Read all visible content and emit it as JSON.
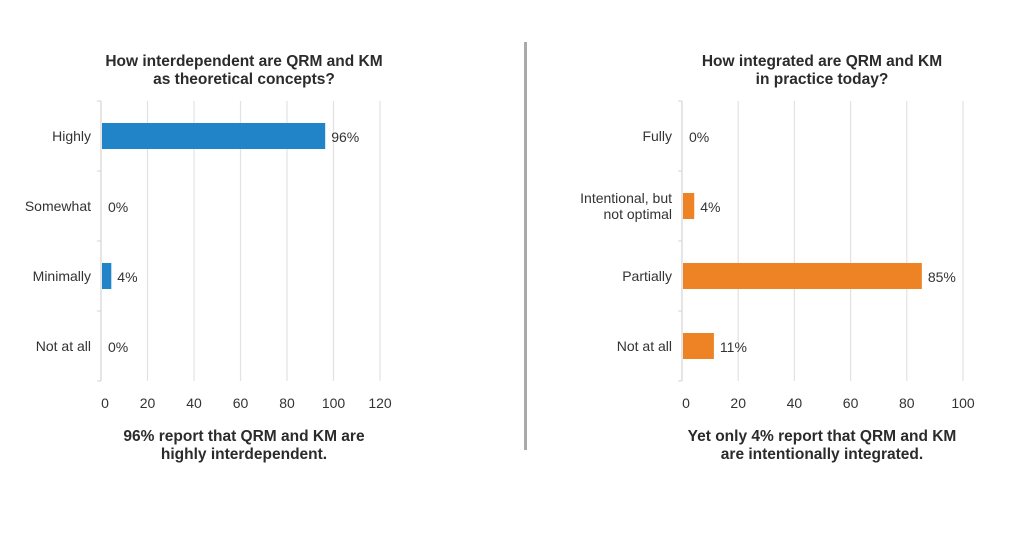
{
  "chart_data": [
    {
      "type": "bar",
      "orientation": "horizontal",
      "title": [
        "How interdependent are QRM and KM",
        "as theoretical concepts?"
      ],
      "categories": [
        "Highly",
        "Somewhat",
        "Minimally",
        "Not at all"
      ],
      "values": [
        96,
        0,
        4,
        0
      ],
      "data_labels": [
        "96%",
        "0%",
        "4%",
        "0%"
      ],
      "xlim": [
        0,
        120
      ],
      "xticks": [
        "0",
        "20",
        "40",
        "60",
        "80",
        "100",
        "120"
      ],
      "grid": true,
      "color": "#2183c8",
      "footnote": [
        "96% report that QRM and KM are",
        "highly interdependent."
      ]
    },
    {
      "type": "bar",
      "orientation": "horizontal",
      "title": [
        "How integrated are QRM and KM",
        "in practice today?"
      ],
      "categories": [
        [
          "Fully"
        ],
        [
          "Intentional, but",
          "not optimal"
        ],
        [
          "Partially"
        ],
        [
          "Not at all"
        ]
      ],
      "values": [
        0,
        4,
        85,
        11
      ],
      "data_labels": [
        "0%",
        "4%",
        "85%",
        "11%"
      ],
      "xlim": [
        0,
        100
      ],
      "xticks": [
        "0",
        "20",
        "40",
        "60",
        "80",
        "100"
      ],
      "grid": true,
      "color": "#ee8325",
      "footnote": [
        "Yet only 4% report that QRM and KM",
        "are intentionally integrated."
      ]
    }
  ]
}
